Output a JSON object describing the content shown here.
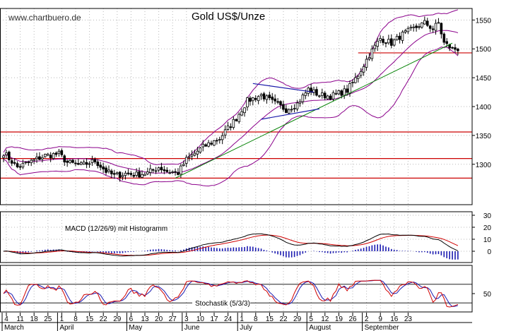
{
  "watermark": "www.chartbuero.de",
  "title": "Gold US$/Unze",
  "colors": {
    "background": "#ffffff",
    "frame": "#000000",
    "grid": "#b8b8b8",
    "candle": "#000000",
    "bollinger": "#8b008b",
    "support": "#cc0000",
    "trend": "#008000",
    "channel": "#1a1aaa",
    "macd": "#000000",
    "signal": "#d00000",
    "histogram": "#1a1ab0",
    "stoch_k": "#d00000",
    "stoch_d": "#1a1ab0"
  },
  "chart_data": [
    {
      "type": "candlestick",
      "name": "price",
      "title": "Gold US$/Unze",
      "ylim": [
        1230,
        1570
      ],
      "y_ticks": [
        1300,
        1350,
        1400,
        1450,
        1500,
        1550
      ],
      "horizontal_lines": [
        1356,
        1310,
        1276,
        1493
      ],
      "trendline": {
        "from_day": 62,
        "from_value": 1276,
        "to_day": 162,
        "to_value": 1510
      },
      "triangle": {
        "upper": [
          [
            90,
            1440
          ],
          [
            112,
            1425
          ]
        ],
        "lower": [
          [
            93,
            1378
          ],
          [
            114,
            1396
          ]
        ]
      },
      "grid": true,
      "legend": "none"
    },
    {
      "type": "line",
      "name": "macd",
      "title": "MACD (12/26/9) mit Histogramm",
      "ylim": [
        -5,
        30
      ],
      "y_ticks": [
        0,
        10,
        20,
        30
      ],
      "series": [
        "macd",
        "signal",
        "histogram"
      ]
    },
    {
      "type": "line",
      "name": "stochastic",
      "title": "Stochastik (5/3/3)",
      "ylim": [
        0,
        100
      ],
      "y_ticks": [
        50
      ],
      "levels": [
        20,
        80
      ],
      "series": [
        "%K",
        "%D"
      ]
    }
  ],
  "x_axis": {
    "day_labels": [
      "4",
      "11",
      "18",
      "25",
      "1",
      "8",
      "15",
      "22",
      "29",
      "6",
      "13",
      "20",
      "27",
      "3",
      "10",
      "17",
      "24",
      "1",
      "8",
      "15",
      "22",
      "29",
      "5",
      "12",
      "19",
      "26",
      "2",
      "9",
      "16",
      "23"
    ],
    "month_labels": [
      "March",
      "April",
      "May",
      "June",
      "July",
      "August",
      "September"
    ]
  }
}
